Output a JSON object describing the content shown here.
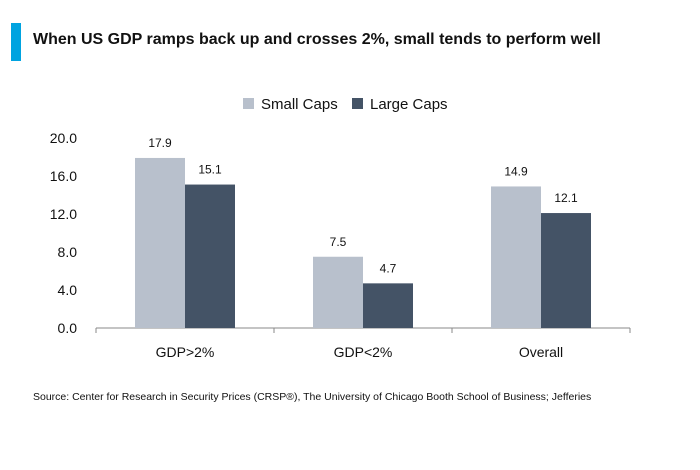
{
  "title": "When US GDP ramps back up and crosses 2%, small tends to perform well",
  "source": "Source: Center for Research in Security Prices (CRSP®), The University of Chicago Booth School of Business; Jefferies",
  "colors": {
    "accent": "#00a3e0",
    "small_caps": "#b8c0cc",
    "large_caps": "#445366",
    "axis": "#888888"
  },
  "chart_data": {
    "type": "bar",
    "title": "When US GDP ramps back up and crosses 2%, small tends to perform well",
    "categories": [
      "GDP>2%",
      "GDP<2%",
      "Overall"
    ],
    "series": [
      {
        "name": "Small Caps",
        "values": [
          17.9,
          7.5,
          14.9
        ],
        "labels": [
          "17.9",
          "7.5",
          "14.9"
        ]
      },
      {
        "name": "Large Caps",
        "values": [
          15.1,
          4.7,
          12.1
        ],
        "labels": [
          "15.1",
          "4.7",
          "12.1"
        ]
      }
    ],
    "yticks": [
      "0.0",
      "4.0",
      "8.0",
      "12.0",
      "16.0",
      "20.0"
    ],
    "ylim": [
      0,
      20
    ],
    "xlabel": "",
    "ylabel": "",
    "grid": false,
    "legend_position": "top-center"
  }
}
